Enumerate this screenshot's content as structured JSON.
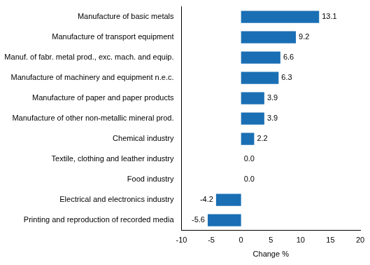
{
  "chart_data": {
    "type": "bar",
    "orientation": "horizontal",
    "categories": [
      "Manufacture of basic metals",
      "Manufacture of transport equipment",
      "Manuf. of fabr. metal prod., exc. mach. and equip.",
      "Manufacture of machinery and equipment n.e.c.",
      "Manufacture of paper and paper products",
      "Manufacture of other non-metallic mineral prod.",
      "Chemical industry",
      "Textile, clothing and leather industry",
      "Food industry",
      "Electrical and electronics industry",
      "Printing and reproduction of recorded media"
    ],
    "values": [
      13.1,
      9.2,
      6.6,
      6.3,
      3.9,
      3.9,
      2.2,
      0.0,
      0.0,
      -4.2,
      -5.6
    ],
    "value_labels": [
      "13.1",
      "9.2",
      "6.6",
      "6.3",
      "3.9",
      "3.9",
      "2.2",
      "0.0",
      "0.0",
      "-4.2",
      "-5.6"
    ],
    "color": "#1a6fb4",
    "xlabel": "Change %",
    "xlim": [
      -10,
      20
    ],
    "xticks": [
      -10,
      -5,
      0,
      5,
      10,
      15,
      20
    ],
    "grid": false,
    "data_labels": true
  }
}
